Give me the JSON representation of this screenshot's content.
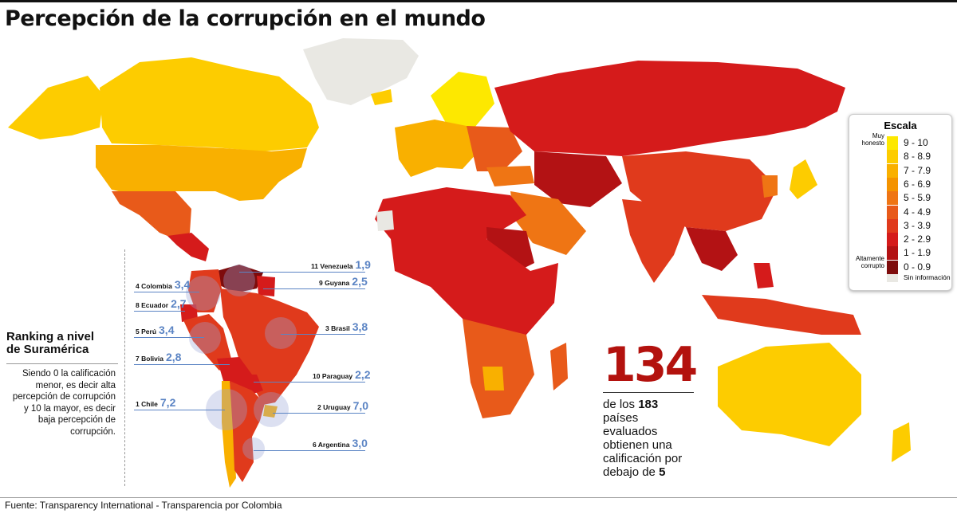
{
  "title": "Percepción de la corrupción en el mundo",
  "legend": {
    "title": "Escala",
    "high_label": "Muy honesto",
    "low_label": "Altamente corrupto",
    "no_data_label": "Sin información",
    "no_data_color": "#e9e8e3",
    "items": [
      {
        "label": "9 - 10",
        "color": "#fde800"
      },
      {
        "label": "8 - 8.9",
        "color": "#fdcc00"
      },
      {
        "label": "7 - 7.9",
        "color": "#f9b000"
      },
      {
        "label": "6 - 6.9",
        "color": "#f49300"
      },
      {
        "label": "5 - 5.9",
        "color": "#ef7514"
      },
      {
        "label": "4 - 4.9",
        "color": "#e85a1a"
      },
      {
        "label": "3 - 3.9",
        "color": "#e03a1c"
      },
      {
        "label": "2 - 2.9",
        "color": "#d51b1b"
      },
      {
        "label": "1 - 1.9",
        "color": "#b31214"
      },
      {
        "label": "0 - 0.9",
        "color": "#7e0c0c"
      }
    ]
  },
  "ranking": {
    "title_line1": "Ranking a nivel",
    "title_line2": "de Suramérica",
    "description": "Siendo 0 la calificación menor, es decir alta percepción de corrupción y 10 la mayor, es decir baja percepción de corrupción.",
    "countries": [
      {
        "rank": "4",
        "name": "Colombia",
        "score": "3,4"
      },
      {
        "rank": "8",
        "name": "Ecuador",
        "score": "2,7"
      },
      {
        "rank": "5",
        "name": "Perú",
        "score": "3,4"
      },
      {
        "rank": "7",
        "name": "Bolivia",
        "score": "2,8"
      },
      {
        "rank": "1",
        "name": "Chile",
        "score": "7,2"
      },
      {
        "rank": "11",
        "name": "Venezuela",
        "score": "1,9"
      },
      {
        "rank": "9",
        "name": "Guyana",
        "score": "2,5"
      },
      {
        "rank": "3",
        "name": "Brasil",
        "score": "3,8"
      },
      {
        "rank": "10",
        "name": "Paraguay",
        "score": "2,2"
      },
      {
        "rank": "2",
        "name": "Uruguay",
        "score": "7,0"
      },
      {
        "rank": "6",
        "name": "Argentina",
        "score": "3,0"
      }
    ]
  },
  "highlight": {
    "number": "134",
    "line1_prefix": "de los ",
    "line1_bold": "183",
    "line2": "países",
    "line3": "evaluados",
    "line4": "obtienen una",
    "line5": "calificación por",
    "line6_prefix": "debajo de ",
    "line6_bold": "5"
  },
  "source": "Fuente: Transparency International - Transparencia por Colombia"
}
